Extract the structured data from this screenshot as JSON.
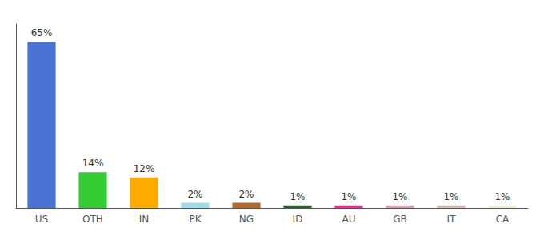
{
  "chart_data": {
    "type": "bar",
    "categories": [
      "US",
      "OTH",
      "IN",
      "PK",
      "NG",
      "ID",
      "AU",
      "GB",
      "IT",
      "CA"
    ],
    "values": [
      65,
      14,
      12,
      2,
      2,
      1,
      1,
      1,
      1,
      1
    ],
    "value_labels": [
      "65%",
      "14%",
      "12%",
      "2%",
      "2%",
      "1%",
      "1%",
      "1%",
      "1%",
      "1%"
    ],
    "colors": [
      "#4a72d4",
      "#33cc33",
      "#ffaa00",
      "#99ddee",
      "#bb6622",
      "#226622",
      "#ff2299",
      "#ee99aa",
      "#ddbbaa",
      "#f0f0cc"
    ],
    "ylim": [
      0,
      72
    ],
    "grid": false,
    "data_labels": true,
    "tick_labels": "x"
  }
}
